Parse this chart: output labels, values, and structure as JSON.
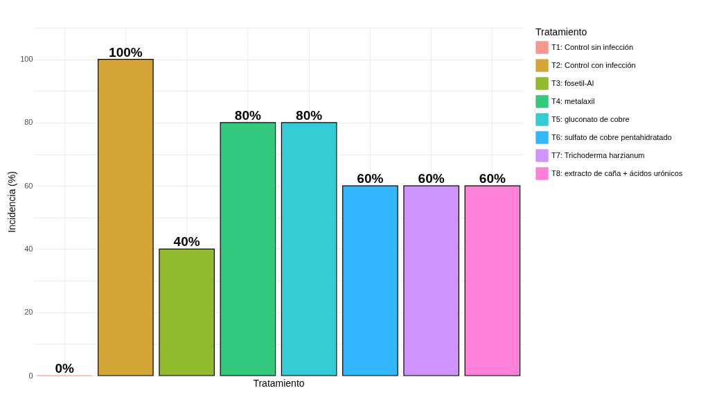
{
  "chart_data": {
    "type": "bar",
    "xlabel": "Tratamiento",
    "ylabel": "Incidencia (%)",
    "legend_title": "Tratamiento",
    "categories": [
      null,
      null,
      null,
      null,
      null,
      null,
      null,
      null
    ],
    "series": [
      {
        "name": "T1: Control sin infección",
        "color": "#f8968f",
        "values": [
          0,
          null,
          null,
          null,
          null,
          null,
          null,
          null
        ],
        "value_labels": [
          "0%",
          null,
          null,
          null,
          null,
          null,
          null,
          null
        ]
      },
      {
        "name": "T2: Control con infección",
        "color": "#d4a537",
        "values": [
          null,
          100,
          null,
          null,
          null,
          null,
          null,
          null
        ],
        "value_labels": [
          null,
          "100%",
          null,
          null,
          null,
          null,
          null,
          null
        ]
      },
      {
        "name": "T3: fosetil-Al",
        "color": "#92ba2e",
        "values": [
          null,
          null,
          40,
          null,
          null,
          null,
          null,
          null
        ],
        "value_labels": [
          null,
          null,
          "40%",
          null,
          null,
          null,
          null,
          null
        ]
      },
      {
        "name": "T4: metalaxil",
        "color": "#33c97f",
        "values": [
          null,
          null,
          null,
          80,
          null,
          null,
          null,
          null
        ],
        "value_labels": [
          null,
          null,
          null,
          "80%",
          null,
          null,
          null,
          null
        ]
      },
      {
        "name": "T5: gluconato de cobre",
        "color": "#33ccd4",
        "values": [
          null,
          null,
          null,
          null,
          80,
          null,
          null,
          null
        ],
        "value_labels": [
          null,
          null,
          null,
          null,
          "80%",
          null,
          null,
          null
        ]
      },
      {
        "name": "T6: sulfato de cobre pentahidratado",
        "color": "#33b8ff",
        "values": [
          null,
          null,
          null,
          null,
          null,
          60,
          null,
          null
        ],
        "value_labels": [
          null,
          null,
          null,
          null,
          null,
          "60%",
          null,
          null
        ]
      },
      {
        "name": "T7: Trichoderma harzianum",
        "color": "#cf94ff",
        "values": [
          null,
          null,
          null,
          null,
          null,
          null,
          60,
          null
        ],
        "value_labels": [
          null,
          null,
          null,
          null,
          null,
          null,
          "60%",
          null
        ]
      },
      {
        "name": "T8: extracto de caña + ácidos urónicos",
        "color": "#ff80d6",
        "values": [
          null,
          null,
          null,
          null,
          null,
          null,
          null,
          60
        ],
        "value_labels": [
          null,
          null,
          null,
          null,
          null,
          null,
          null,
          "60%"
        ]
      }
    ],
    "ylim": [
      0,
      110
    ],
    "yticks": [
      0,
      {
        "value": 10,
        "label": null
      },
      20,
      {
        "value": 30,
        "label": null
      },
      40,
      {
        "value": 50,
        "label": null
      },
      60,
      {
        "value": 70,
        "label": null
      },
      80,
      {
        "value": 90,
        "label": null
      },
      100,
      {
        "value": 110,
        "label": null
      }
    ],
    "grid": true,
    "legend": "right",
    "tick_labels": "y"
  }
}
